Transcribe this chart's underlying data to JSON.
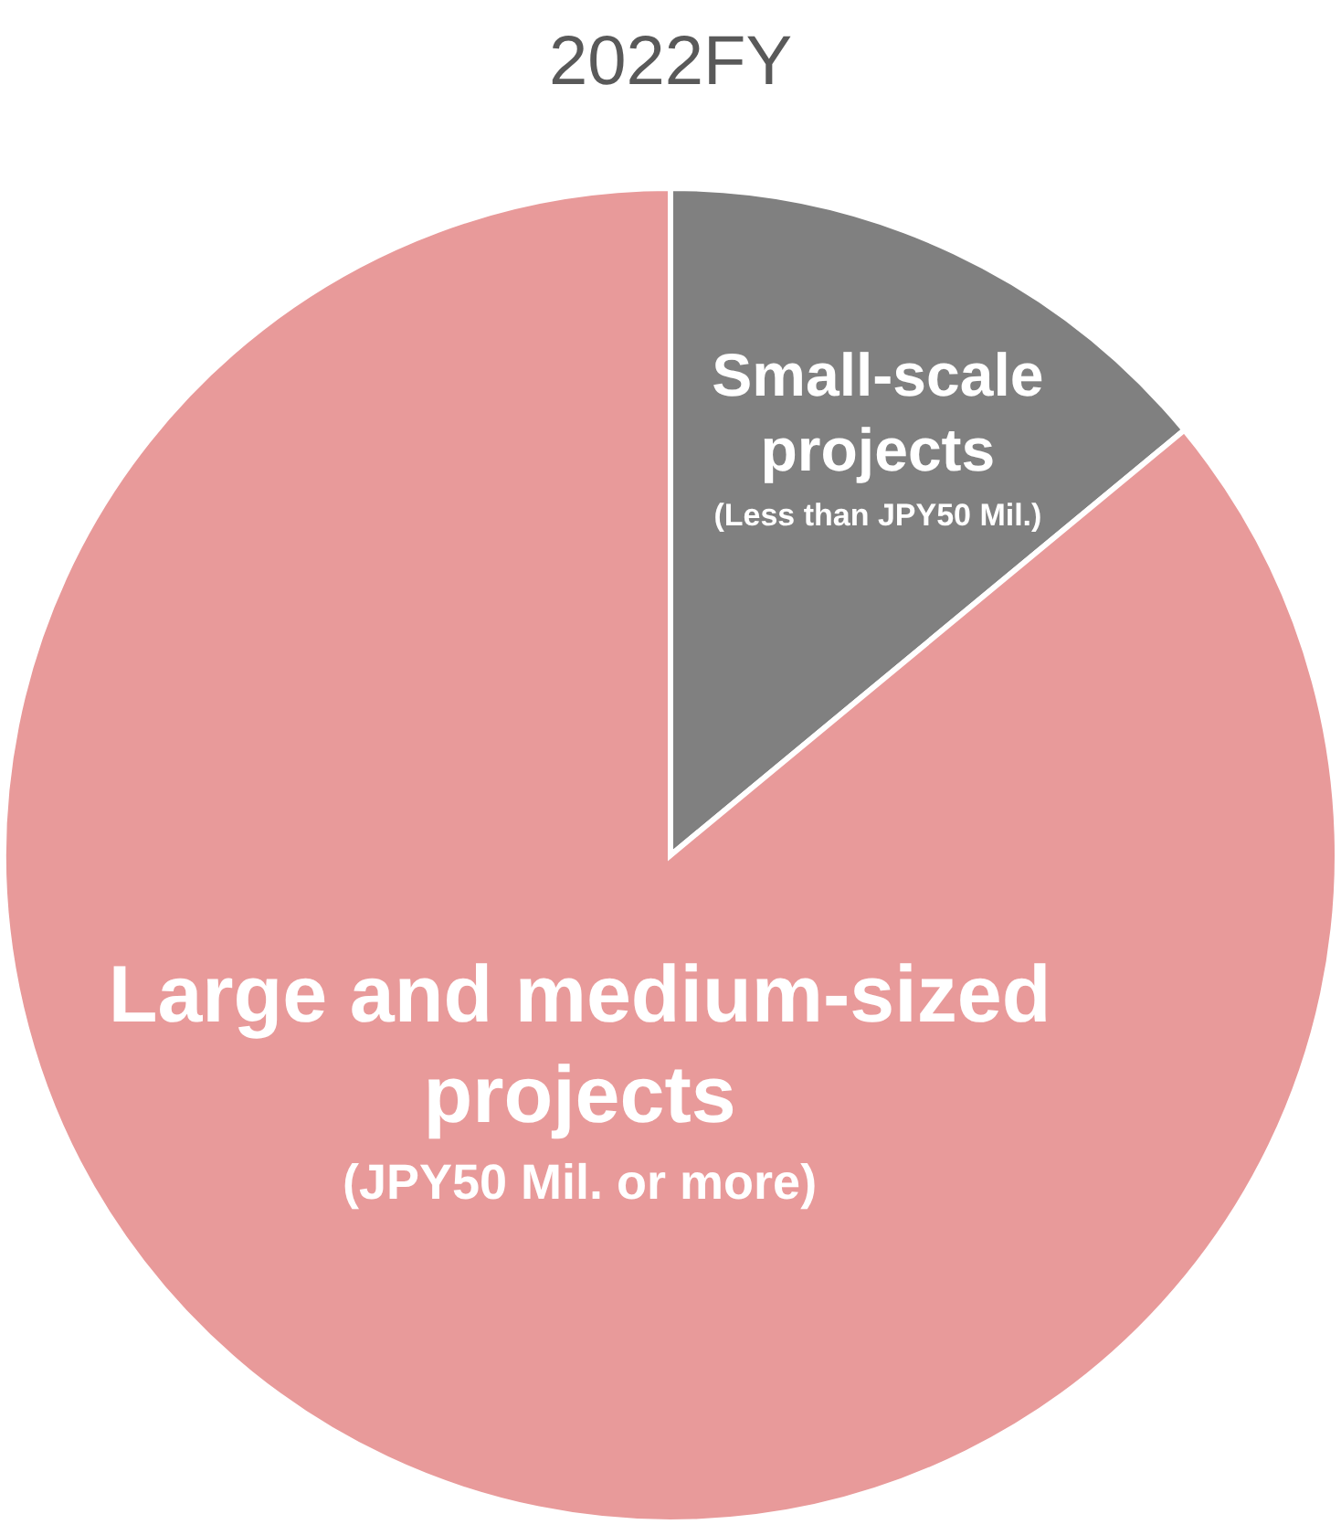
{
  "chart_data": {
    "type": "pie",
    "title": "2022FY",
    "categories": [
      "Small-scale\nprojects",
      "Large and medium-sized\nprojects"
    ],
    "values": [
      14,
      86
    ],
    "colors": [
      "#808080",
      "#e89a9a"
    ],
    "annotations": [
      "(Less than JPY50 Mil.)",
      "(JPY50 Mil. or more)"
    ]
  }
}
